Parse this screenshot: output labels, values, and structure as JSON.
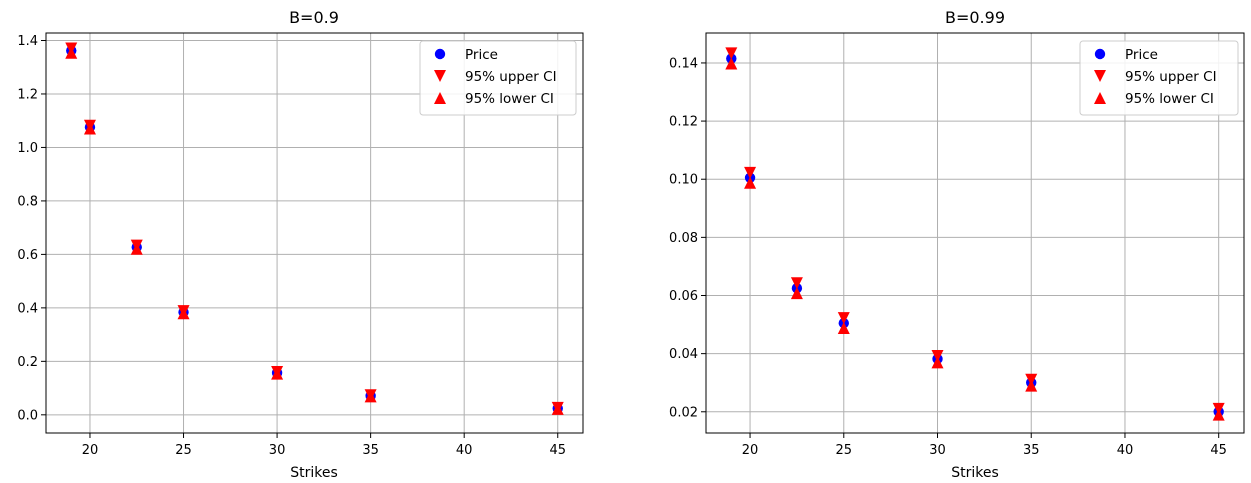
{
  "chart_data": [
    {
      "type": "scatter",
      "title": "B=0.9",
      "xlabel": "Strikes",
      "ylabel": "",
      "xlim": [
        17.65,
        46.35
      ],
      "ylim": [
        -0.068,
        1.428
      ],
      "xticks": [
        20,
        25,
        30,
        35,
        40,
        45
      ],
      "yticks": [
        0.0,
        0.2,
        0.4,
        0.6,
        0.8,
        1.0,
        1.2,
        1.4
      ],
      "ytick_labels": [
        "0.0",
        "0.2",
        "0.4",
        "0.6",
        "0.8",
        "1.0",
        "1.2",
        "1.4"
      ],
      "grid": true,
      "legend_position": "top-right",
      "x": [
        19,
        20,
        22.5,
        25,
        30,
        35,
        45
      ],
      "series": [
        {
          "name": "Price",
          "marker": "circle",
          "color": "#0000ff",
          "values": [
            1.362,
            1.076,
            0.627,
            0.384,
            0.157,
            0.071,
            0.024
          ]
        },
        {
          "name": "95% upper CI",
          "marker": "triangle-down",
          "color": "#ff0000",
          "values": [
            1.37,
            1.081,
            0.633,
            0.388,
            0.16,
            0.073,
            0.026
          ]
        },
        {
          "name": "95% lower CI",
          "marker": "triangle-up",
          "color": "#ff0000",
          "values": [
            1.354,
            1.071,
            0.621,
            0.38,
            0.154,
            0.069,
            0.022
          ]
        }
      ]
    },
    {
      "type": "scatter",
      "title": "B=0.99",
      "xlabel": "Strikes",
      "ylabel": "",
      "xlim": [
        17.65,
        46.35
      ],
      "ylim": [
        0.0127,
        0.1503
      ],
      "xticks": [
        20,
        25,
        30,
        35,
        40,
        45
      ],
      "yticks": [
        0.02,
        0.04,
        0.06,
        0.08,
        0.1,
        0.12,
        0.14
      ],
      "ytick_labels": [
        "0.02",
        "0.04",
        "0.06",
        "0.08",
        "0.10",
        "0.12",
        "0.14"
      ],
      "grid": true,
      "legend_position": "top-right",
      "x": [
        19,
        20,
        22.5,
        25,
        30,
        35,
        45
      ],
      "series": [
        {
          "name": "Price",
          "marker": "circle",
          "color": "#0000ff",
          "values": [
            0.1415,
            0.1005,
            0.0625,
            0.0505,
            0.0382,
            0.03,
            0.02
          ]
        },
        {
          "name": "95% upper CI",
          "marker": "triangle-down",
          "color": "#ff0000",
          "values": [
            0.1433,
            0.1022,
            0.0642,
            0.0522,
            0.0392,
            0.031,
            0.021
          ]
        },
        {
          "name": "95% lower CI",
          "marker": "triangle-up",
          "color": "#ff0000",
          "values": [
            0.1398,
            0.0988,
            0.0608,
            0.0488,
            0.037,
            0.029,
            0.019
          ]
        }
      ]
    }
  ]
}
